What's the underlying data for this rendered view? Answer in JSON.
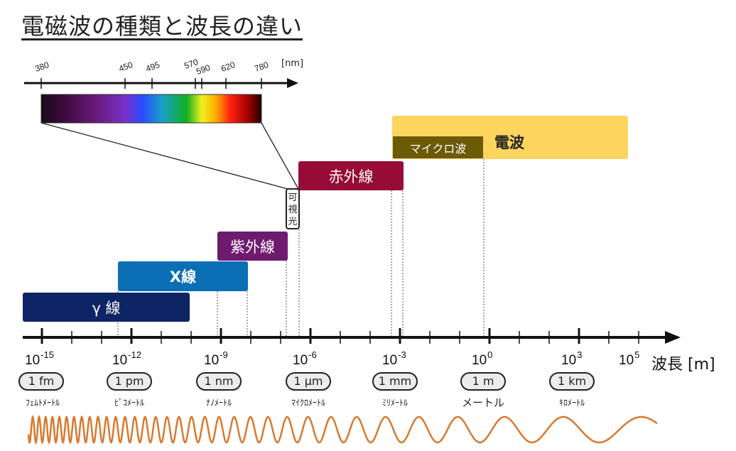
{
  "title": "電磁波の種類と波長の違い",
  "spectrum": {
    "unit": "[nm]",
    "marks": [
      "380",
      "450",
      "495",
      "570",
      "590",
      "620",
      "780"
    ]
  },
  "bands": {
    "gamma": "γ 線",
    "xray": "X線",
    "uv": "紫外線",
    "visible": [
      "可",
      "視",
      "光"
    ],
    "ir": "赤外線",
    "radio": "電波",
    "micro": "マイクロ波"
  },
  "axis": {
    "label": "波長 [m]",
    "ticks": [
      {
        "base": "10",
        "exp": "-15"
      },
      {
        "base": "10",
        "exp": "-12"
      },
      {
        "base": "10",
        "exp": "-9"
      },
      {
        "base": "10",
        "exp": "-6"
      },
      {
        "base": "10",
        "exp": "-3"
      },
      {
        "base": "10",
        "exp": "0"
      },
      {
        "base": "10",
        "exp": "3"
      },
      {
        "base": "10",
        "exp": "5"
      }
    ]
  },
  "units": [
    {
      "pill": "1 fm",
      "name": "ﾌｪﾑﾄﾒｰﾄﾙ"
    },
    {
      "pill": "1 pm",
      "name": "ﾋﾟｺﾒｰﾄﾙ"
    },
    {
      "pill": "1 nm",
      "name": "ﾅﾉﾒｰﾄﾙ"
    },
    {
      "pill": "1 µm",
      "name": "ﾏｲｸﾛﾒｰﾄﾙ"
    },
    {
      "pill": "1 mm",
      "name": "ﾐﾘﾒｰﾄﾙ"
    },
    {
      "pill": "1 m",
      "name": "メートル"
    },
    {
      "pill": "1 km",
      "name": "ｷﾛﾒｰﾄﾙ"
    }
  ],
  "colors": {
    "gamma": "#0f2464",
    "xray": "#0a6fb5",
    "uv": "#6e1a6e",
    "ir": "#960b38",
    "radio": "#fcd45e",
    "micro": "#6b5a08",
    "wave": "#d9792f"
  }
}
